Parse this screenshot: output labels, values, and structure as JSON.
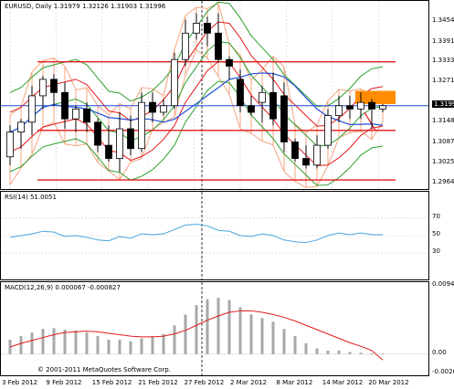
{
  "main": {
    "title": "EURUSD, Daily",
    "ohlc": "1.31979 1.32126 1.31903 1.31996",
    "price_ticks": [
      "1.34545",
      "1.33915",
      "1.33330",
      "1.32710",
      "1.31996",
      "1.31485",
      "1.30870",
      "1.30255",
      "1.29640"
    ],
    "current_price": "1.31996"
  },
  "rsi": {
    "title": "RSI(14) 51.0051",
    "levels": [
      "70",
      "50",
      "30"
    ]
  },
  "macd": {
    "title": "MACD(12,26,9) 0.000067 -0.000827",
    "ticks": [
      "0.00947",
      "0.00",
      "-0.00267"
    ],
    "copyright": "© 2001-2011 MetaQuotes Software Corp."
  },
  "dates": [
    "3 Feb 2012",
    "9 Feb 2012",
    "15 Feb 2012",
    "21 Feb 2012",
    "27 Feb 2012",
    "2 Mar 2012",
    "8 Mar 2012",
    "14 Mar 2012",
    "20 Mar 2012"
  ],
  "colors": {
    "cloud": "#f4a582",
    "bollinger": "#2ca02c",
    "envelope": "#e31a1c",
    "ma_blue": "#1f4fd8",
    "rsi_line": "#4aa3df",
    "macd_signal": "#e31a1c",
    "orange_box": "#ff8c00"
  },
  "chart_data": {
    "type": "candlestick",
    "dates": [
      "3 Feb 2012",
      "9 Feb 2012",
      "15 Feb 2012",
      "21 Feb 2012",
      "27 Feb 2012",
      "2 Mar 2012",
      "8 Mar 2012",
      "14 Mar 2012",
      "20 Mar 2012"
    ],
    "ylim": [
      1.2964,
      1.349
    ],
    "candles": [
      {
        "o": 1.3045,
        "h": 1.314,
        "l": 1.302,
        "c": 1.312
      },
      {
        "o": 1.312,
        "h": 1.316,
        "l": 1.307,
        "c": 1.315
      },
      {
        "o": 1.315,
        "h": 1.326,
        "l": 1.311,
        "c": 1.323
      },
      {
        "o": 1.323,
        "h": 1.329,
        "l": 1.319,
        "c": 1.328
      },
      {
        "o": 1.328,
        "h": 1.3295,
        "l": 1.32,
        "c": 1.324
      },
      {
        "o": 1.324,
        "h": 1.327,
        "l": 1.313,
        "c": 1.316
      },
      {
        "o": 1.316,
        "h": 1.32,
        "l": 1.312,
        "c": 1.319
      },
      {
        "o": 1.319,
        "h": 1.321,
        "l": 1.312,
        "c": 1.315
      },
      {
        "o": 1.315,
        "h": 1.316,
        "l": 1.306,
        "c": 1.308
      },
      {
        "o": 1.308,
        "h": 1.314,
        "l": 1.303,
        "c": 1.304
      },
      {
        "o": 1.304,
        "h": 1.318,
        "l": 1.3,
        "c": 1.313
      },
      {
        "o": 1.313,
        "h": 1.317,
        "l": 1.305,
        "c": 1.307
      },
      {
        "o": 1.307,
        "h": 1.324,
        "l": 1.306,
        "c": 1.321
      },
      {
        "o": 1.321,
        "h": 1.324,
        "l": 1.315,
        "c": 1.318
      },
      {
        "o": 1.318,
        "h": 1.322,
        "l": 1.317,
        "c": 1.32
      },
      {
        "o": 1.32,
        "h": 1.336,
        "l": 1.319,
        "c": 1.334
      },
      {
        "o": 1.334,
        "h": 1.346,
        "l": 1.332,
        "c": 1.342
      },
      {
        "o": 1.342,
        "h": 1.348,
        "l": 1.34,
        "c": 1.345
      },
      {
        "o": 1.345,
        "h": 1.347,
        "l": 1.338,
        "c": 1.342
      },
      {
        "o": 1.342,
        "h": 1.348,
        "l": 1.333,
        "c": 1.334
      },
      {
        "o": 1.334,
        "h": 1.335,
        "l": 1.328,
        "c": 1.332
      },
      {
        "o": 1.328,
        "h": 1.331,
        "l": 1.318,
        "c": 1.32
      },
      {
        "o": 1.32,
        "h": 1.323,
        "l": 1.317,
        "c": 1.318
      },
      {
        "o": 1.321,
        "h": 1.326,
        "l": 1.315,
        "c": 1.324
      },
      {
        "o": 1.324,
        "h": 1.33,
        "l": 1.314,
        "c": 1.316
      },
      {
        "o": 1.323,
        "h": 1.327,
        "l": 1.306,
        "c": 1.309
      },
      {
        "o": 1.309,
        "h": 1.31,
        "l": 1.303,
        "c": 1.304
      },
      {
        "o": 1.304,
        "h": 1.308,
        "l": 1.301,
        "c": 1.302
      },
      {
        "o": 1.302,
        "h": 1.311,
        "l": 1.301,
        "c": 1.308
      },
      {
        "o": 1.308,
        "h": 1.319,
        "l": 1.307,
        "c": 1.317
      },
      {
        "o": 1.317,
        "h": 1.323,
        "l": 1.315,
        "c": 1.32
      },
      {
        "o": 1.32,
        "h": 1.323,
        "l": 1.316,
        "c": 1.319
      },
      {
        "o": 1.319,
        "h": 1.324,
        "l": 1.316,
        "c": 1.321
      },
      {
        "o": 1.321,
        "h": 1.322,
        "l": 1.313,
        "c": 1.319
      },
      {
        "o": 1.319,
        "h": 1.3205,
        "l": 1.318,
        "c": 1.32
      }
    ],
    "rsi": [
      48,
      50,
      52,
      55,
      54,
      49,
      50,
      48,
      45,
      44,
      49,
      47,
      52,
      51,
      52,
      57,
      62,
      63,
      61,
      56,
      55,
      50,
      49,
      52,
      50,
      45,
      43,
      42,
      45,
      50,
      53,
      51,
      53,
      51,
      51
    ],
    "macd_hist": [
      0.002,
      0.0025,
      0.003,
      0.0035,
      0.0036,
      0.0034,
      0.0033,
      0.003,
      0.0025,
      0.002,
      0.002,
      0.0018,
      0.0022,
      0.0025,
      0.0028,
      0.004,
      0.0055,
      0.0068,
      0.0076,
      0.0078,
      0.0075,
      0.0065,
      0.0055,
      0.005,
      0.0045,
      0.0035,
      0.0025,
      0.0015,
      0.0008,
      0.0005,
      0.0005,
      0.0003,
      0.0002,
      0.0001,
      7e-05
    ],
    "macd_signal": [
      0.001,
      0.0015,
      0.0019,
      0.0023,
      0.0027,
      0.003,
      0.0031,
      0.0032,
      0.0031,
      0.0029,
      0.0027,
      0.0025,
      0.0024,
      0.0024,
      0.0025,
      0.0028,
      0.0033,
      0.004,
      0.0047,
      0.0053,
      0.0058,
      0.006,
      0.006,
      0.0058,
      0.0055,
      0.0051,
      0.0046,
      0.004,
      0.0034,
      0.0028,
      0.0022,
      0.0016,
      0.0011,
      0.0005,
      -0.0008
    ]
  }
}
